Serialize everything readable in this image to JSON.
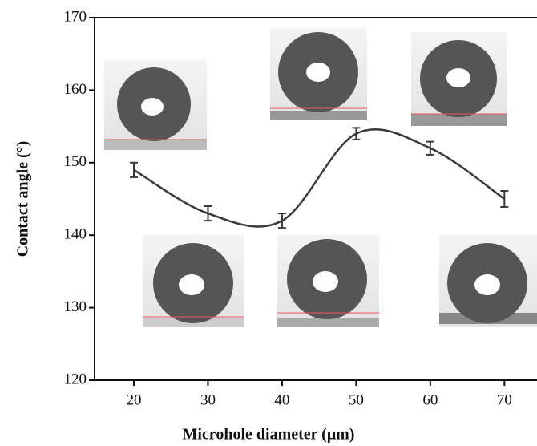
{
  "chart_data": {
    "type": "line",
    "x_label": "Microhole diameter (μm)",
    "y_label": "Contact angle (°)",
    "x": [
      20,
      30,
      40,
      50,
      60,
      70
    ],
    "series": [
      {
        "color": "#3a3a3a",
        "values": [
          149,
          143,
          142,
          154,
          152,
          145
        ],
        "errors": [
          1,
          1,
          1,
          0.8,
          0.9,
          1.1
        ]
      }
    ],
    "xlim": [
      14.7,
      74.4
    ],
    "xticks": [
      20,
      30,
      40,
      50,
      60,
      70
    ],
    "ylim": [
      120,
      170
    ],
    "yticks": [
      120,
      130,
      140,
      150,
      160,
      170
    ],
    "grid": false
  }
}
